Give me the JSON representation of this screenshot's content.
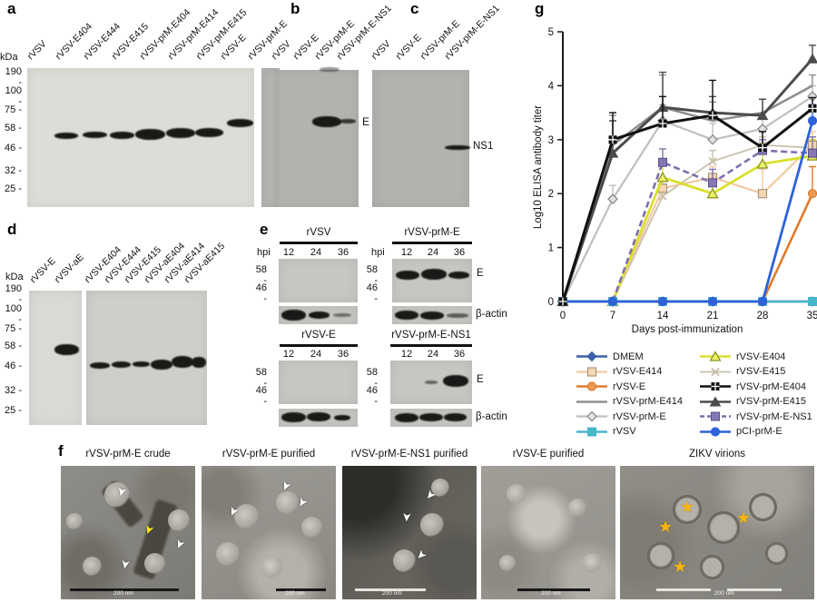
{
  "panel_a": {
    "label": "a",
    "kda_header": "kDa",
    "ladder": [
      "190",
      "100",
      "75",
      "58",
      "46",
      "32",
      "25"
    ],
    "lanes": [
      "rVSV",
      "rVSV-E404",
      "rVSV-E444",
      "rVSV-E415",
      "rVSV-prM-E404",
      "rVSV-prM-E414",
      "rVSV-prM-E415",
      "rVSV-E",
      "rVSV-prM-E"
    ]
  },
  "panel_b": {
    "label": "b",
    "lanes": [
      "rVSV",
      "rVSV-E",
      "rVSV-prM-E",
      "rVSV-prM-E-NS1"
    ],
    "band_label": "E"
  },
  "panel_c": {
    "label": "c",
    "lanes": [
      "rVSV",
      "rVSV-E",
      "rVSV-prM-E",
      "rVSV-prM-E-NS1"
    ],
    "band_label": "NS1"
  },
  "panel_d": {
    "label": "d",
    "kda_header": "kDa",
    "ladder": [
      "190",
      "100",
      "75",
      "58",
      "46",
      "32",
      "25"
    ],
    "lanes_blot1": [
      "rVSV-E",
      "rVSV-aE"
    ],
    "lanes_blot2": [
      "rVSV-E404",
      "rVSV-E444",
      "rVSV-E415",
      "rVSV-aE404",
      "rVSV-aE414",
      "rVSV-aE415"
    ]
  },
  "panel_e": {
    "label": "e",
    "hpi_label": "hpi",
    "timepoints": [
      "12",
      "24",
      "36"
    ],
    "marker_58": "58",
    "marker_46": "46",
    "blots": [
      {
        "title": "rVSV"
      },
      {
        "title": "rVSV-prM-E",
        "e_label": "E",
        "actin_label": "β-actin"
      },
      {
        "title": "rVSV-E"
      },
      {
        "title": "rVSV-prM-E-NS1",
        "e_label": "E",
        "actin_label": "β-actin"
      }
    ]
  },
  "panel_f": {
    "label": "f",
    "images": [
      {
        "title": "rVSV-prM-E crude",
        "scale_label": "200 nm"
      },
      {
        "title": "rVSV-prM-E purified",
        "scale_label": "200 nm"
      },
      {
        "title": "rVSV-prM-E-NS1 purified",
        "scale_label": "200 nm"
      },
      {
        "title": "rVSV-E purified",
        "scale_label": "200 nm"
      },
      {
        "title": "ZIKV virions",
        "scale_label": "200 nm"
      }
    ]
  },
  "panel_g": {
    "label": "g",
    "chart_data": {
      "type": "line",
      "x": [
        0,
        7,
        14,
        21,
        28,
        35
      ],
      "xlabel": "Days post-immunization",
      "ylabel": "Log10 ELISA antibody titer",
      "ylim": [
        0,
        5
      ],
      "yticks": [
        0,
        1,
        2,
        3,
        4,
        5
      ],
      "grid": false,
      "legend_position": "bottom",
      "series": [
        {
          "name": "DMEM",
          "color": "#3a5fa8",
          "marker": "diamond",
          "lw": 2.5,
          "values": [
            0,
            0,
            0,
            0,
            0,
            0
          ],
          "err": [
            0,
            0,
            0,
            0,
            0,
            0
          ]
        },
        {
          "name": "rVSV-E414",
          "color": "#f0c9a2",
          "marker": "square-open",
          "marker_fill": "#f6d7b4",
          "marker_stroke": "#a8977c",
          "lw": 2.2,
          "values": [
            0,
            0,
            2.1,
            2.3,
            2.0,
            2.9
          ],
          "err": [
            0,
            0,
            0.15,
            0.2,
            0.45,
            0.25
          ]
        },
        {
          "name": "rVSV-E",
          "color": "#e07b2a",
          "marker": "circle",
          "marker_fill": "#ec9a56",
          "lw": 2.6,
          "values": [
            0,
            0,
            0,
            0,
            0,
            2.0
          ],
          "err": [
            0,
            0,
            0,
            0,
            0,
            0.5
          ]
        },
        {
          "name": "rVSV-prM-E414",
          "color": "#8f8f8f",
          "marker": "none",
          "lw": 2.6,
          "values": [
            0,
            2.9,
            3.6,
            3.35,
            3.5,
            4.0
          ],
          "err": [
            0,
            0.55,
            0.6,
            0.35,
            0.25,
            0.2
          ]
        },
        {
          "name": "rVSV-prM-E",
          "color": "#bfbfbf",
          "marker": "diamond-open",
          "marker_fill": "#e2e2e2",
          "marker_stroke": "#848484",
          "lw": 2.2,
          "values": [
            0,
            1.9,
            3.35,
            3.0,
            3.2,
            3.8
          ],
          "err": [
            0,
            0.25,
            0.3,
            0.3,
            0.2,
            0.2
          ]
        },
        {
          "name": "rVSV",
          "color": "#48b6c9",
          "marker": "square",
          "lw": 2.5,
          "values": [
            0,
            0,
            0,
            0,
            0,
            0
          ],
          "err": [
            0,
            0,
            0,
            0,
            0,
            0
          ]
        },
        {
          "name": "rVSV-E404",
          "color": "#d9e02b",
          "marker": "triangle-open",
          "marker_fill": "#eaf06a",
          "marker_stroke": "#8d9423",
          "lw": 2.8,
          "values": [
            0,
            0,
            2.3,
            2.0,
            2.55,
            2.7
          ],
          "err": [
            0,
            0,
            0.25,
            0.15,
            0.35,
            0.3
          ]
        },
        {
          "name": "rVSV-E415",
          "color": "#c9c0ac",
          "marker": "x",
          "lw": 1.8,
          "values": [
            0,
            0,
            1.95,
            2.6,
            2.9,
            2.85
          ],
          "err": [
            0,
            0,
            0.2,
            0.2,
            0.15,
            0.2
          ]
        },
        {
          "name": "rVSV-prM-E404",
          "color": "#101010",
          "marker": "square-cross",
          "lw": 3,
          "values": [
            0,
            3.0,
            3.3,
            3.45,
            2.85,
            3.58
          ],
          "err": [
            0,
            0.5,
            0.5,
            0.65,
            0.3,
            0.2
          ]
        },
        {
          "name": "rVSV-prM-E415",
          "color": "#4c4c4c",
          "marker": "triangle",
          "lw": 3,
          "values": [
            0,
            2.75,
            3.6,
            3.5,
            3.45,
            4.5
          ],
          "err": [
            0,
            0.6,
            0.65,
            0.3,
            0.3,
            0.25
          ]
        },
        {
          "name": "rVSV-prM-E-NS1",
          "color": "#7e6faf",
          "marker": "square",
          "marker_fill": "#8578b4",
          "marker_stroke": "#5c4f8a",
          "dash": "7,4",
          "lw": 2.6,
          "values": [
            0,
            0,
            2.58,
            2.2,
            2.8,
            2.75
          ],
          "err": [
            0,
            0,
            0.25,
            0.25,
            0.2,
            0.3
          ]
        },
        {
          "name": "pCI-prM-E",
          "color": "#2f62d8",
          "marker": "circle",
          "lw": 2.8,
          "values": [
            0,
            0,
            0,
            0,
            0,
            3.35
          ],
          "err": [
            0,
            0,
            0,
            0,
            0,
            0.3
          ]
        }
      ],
      "draw_order": [
        7,
        1,
        4,
        3,
        6,
        10,
        2,
        0,
        5,
        11,
        9,
        8
      ]
    }
  }
}
